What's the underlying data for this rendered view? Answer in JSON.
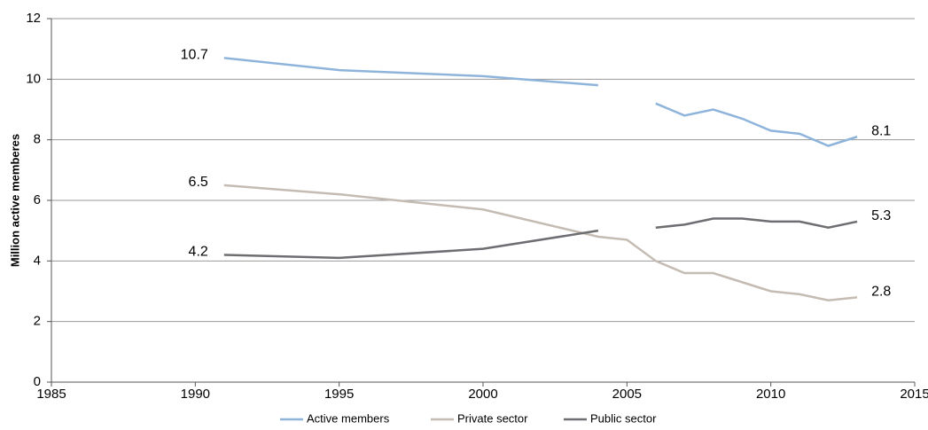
{
  "chart_data": {
    "type": "line",
    "y_label": "Million active memberes",
    "x": [
      1991,
      1995,
      2000,
      2004,
      2005,
      2006,
      2007,
      2008,
      2009,
      2010,
      2011,
      2012,
      2013
    ],
    "series": [
      {
        "name": "Active members",
        "color": "#8eb4dc",
        "values": [
          10.7,
          10.3,
          10.1,
          9.8,
          null,
          9.2,
          8.8,
          9.0,
          8.7,
          8.3,
          8.2,
          7.8,
          8.1
        ]
      },
      {
        "name": "Private sector",
        "color": "#c4bbb2",
        "values": [
          6.5,
          6.2,
          5.7,
          4.8,
          4.7,
          4.0,
          3.6,
          3.6,
          3.3,
          3.0,
          2.9,
          2.7,
          2.8
        ]
      },
      {
        "name": "Public sector",
        "color": "#6d6e71",
        "values": [
          4.2,
          4.1,
          4.4,
          5.0,
          null,
          5.1,
          5.2,
          5.4,
          5.4,
          5.3,
          5.3,
          5.1,
          5.3
        ]
      }
    ],
    "xlim": [
      1985,
      2015
    ],
    "xticks": [
      1985,
      1990,
      1995,
      2000,
      2005,
      2010,
      2015
    ],
    "ylim": [
      0,
      12
    ],
    "yticks": [
      0,
      2,
      4,
      6,
      8,
      10,
      12
    ],
    "grid": true,
    "legend": "bottom"
  }
}
